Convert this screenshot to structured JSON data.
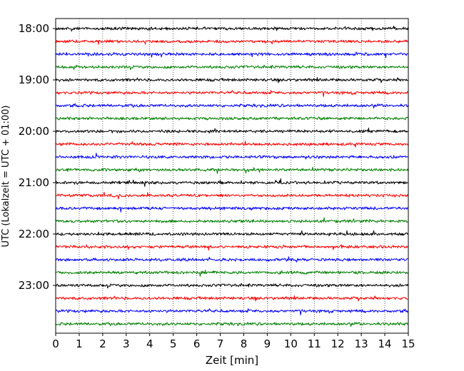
{
  "chart_data": {
    "type": "line",
    "title": "",
    "xlabel": "Zeit  [min]",
    "ylabel": "UTC (Lokalzeit = UTC + 01:00)",
    "xlim": [
      0,
      15
    ],
    "x_ticks": [
      "0",
      "1",
      "2",
      "3",
      "4",
      "5",
      "6",
      "7",
      "8",
      "9",
      "10",
      "11",
      "12",
      "13",
      "14",
      "15"
    ],
    "y_ticks": [
      "18:00",
      "19:00",
      "20:00",
      "21:00",
      "22:00",
      "23:00"
    ],
    "row_interval_minutes": 15,
    "trace_count": 24,
    "trace_start": "18:00",
    "trace_colors": [
      "#000000",
      "#ff0000",
      "#0000ff",
      "#008000"
    ],
    "grid": {
      "x": true,
      "y": false,
      "style": "dotted"
    }
  }
}
